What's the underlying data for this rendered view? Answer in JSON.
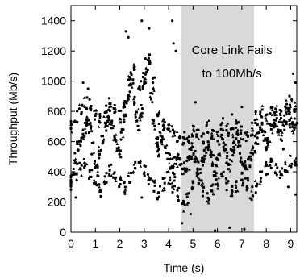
{
  "chart_data": {
    "type": "scatter",
    "xlabel": "Time (s)",
    "ylabel": "Throughput (Mb/s)",
    "xlim": [
      0,
      9.25
    ],
    "ylim": [
      0,
      1500
    ],
    "xticks": [
      "0",
      "1",
      "2",
      "3",
      "4",
      "5",
      "6",
      "7",
      "8",
      "9"
    ],
    "yticks": [
      "0",
      "200",
      "400",
      "600",
      "800",
      "1000",
      "1200",
      "1400"
    ],
    "legend": "none",
    "grid": false,
    "shaded_region": {
      "x_start": 4.5,
      "x_end": 7.5,
      "color": "#d9d9d9"
    },
    "annotation": {
      "line1": "Core Link Fails",
      "line2": "to 100Mb/s"
    },
    "series": [
      {
        "marker": "dense-points",
        "points": [
          [
            0.0,
            340
          ],
          [
            0.1,
            420
          ],
          [
            0.2,
            480
          ],
          [
            0.3,
            560
          ],
          [
            0.4,
            610
          ],
          [
            0.5,
            650
          ],
          [
            0.6,
            700
          ],
          [
            0.7,
            720
          ],
          [
            0.8,
            690
          ],
          [
            0.9,
            560
          ],
          [
            1.0,
            470
          ],
          [
            1.1,
            410
          ],
          [
            1.2,
            530
          ],
          [
            1.3,
            600
          ],
          [
            1.4,
            680
          ],
          [
            1.5,
            740
          ],
          [
            1.6,
            760
          ],
          [
            1.7,
            700
          ],
          [
            1.8,
            640
          ],
          [
            1.9,
            580
          ],
          [
            2.0,
            540
          ],
          [
            2.1,
            640
          ],
          [
            2.2,
            760
          ],
          [
            2.3,
            870
          ],
          [
            2.4,
            940
          ],
          [
            2.5,
            1000
          ],
          [
            2.6,
            880
          ],
          [
            2.7,
            780
          ],
          [
            2.8,
            720
          ],
          [
            2.9,
            800
          ],
          [
            3.0,
            980
          ],
          [
            3.1,
            1060
          ],
          [
            3.2,
            1140
          ],
          [
            3.3,
            900
          ],
          [
            3.4,
            720
          ],
          [
            3.5,
            600
          ],
          [
            3.6,
            540
          ],
          [
            3.7,
            620
          ],
          [
            3.8,
            660
          ],
          [
            3.9,
            560
          ],
          [
            4.0,
            500
          ],
          [
            4.1,
            450
          ],
          [
            4.2,
            410
          ],
          [
            4.3,
            470
          ],
          [
            4.4,
            520
          ],
          [
            4.5,
            480
          ],
          [
            4.6,
            420
          ],
          [
            4.7,
            390
          ],
          [
            4.8,
            460
          ],
          [
            4.9,
            520
          ],
          [
            5.0,
            560
          ],
          [
            5.1,
            500
          ],
          [
            5.2,
            430
          ],
          [
            5.3,
            380
          ],
          [
            5.4,
            450
          ],
          [
            5.5,
            520
          ],
          [
            5.6,
            580
          ],
          [
            5.7,
            540
          ],
          [
            5.8,
            470
          ],
          [
            5.9,
            420
          ],
          [
            6.0,
            480
          ],
          [
            6.1,
            540
          ],
          [
            6.2,
            600
          ],
          [
            6.3,
            560
          ],
          [
            6.4,
            490
          ],
          [
            6.5,
            440
          ],
          [
            6.6,
            510
          ],
          [
            6.7,
            570
          ],
          [
            6.8,
            620
          ],
          [
            6.9,
            560
          ],
          [
            7.0,
            490
          ],
          [
            7.1,
            430
          ],
          [
            7.2,
            400
          ],
          [
            7.3,
            460
          ],
          [
            7.4,
            520
          ],
          [
            7.5,
            560
          ],
          [
            7.6,
            620
          ],
          [
            7.7,
            680
          ],
          [
            7.8,
            700
          ],
          [
            7.9,
            640
          ],
          [
            8.0,
            590
          ],
          [
            8.1,
            620
          ],
          [
            8.2,
            680
          ],
          [
            8.3,
            720
          ],
          [
            8.4,
            740
          ],
          [
            8.5,
            690
          ],
          [
            8.6,
            650
          ],
          [
            8.7,
            700
          ],
          [
            8.8,
            760
          ],
          [
            8.9,
            780
          ],
          [
            9.0,
            730
          ],
          [
            9.1,
            690
          ],
          [
            9.2,
            720
          ]
        ]
      },
      {
        "marker": "upper-band",
        "points": [
          [
            0.0,
            700
          ],
          [
            0.2,
            760
          ],
          [
            0.4,
            820
          ],
          [
            0.6,
            860
          ],
          [
            0.8,
            840
          ],
          [
            1.0,
            790
          ],
          [
            1.2,
            740
          ],
          [
            1.4,
            810
          ],
          [
            1.6,
            850
          ],
          [
            1.8,
            820
          ],
          [
            2.0,
            760
          ],
          [
            2.2,
            840
          ],
          [
            2.4,
            1040
          ],
          [
            2.6,
            1110
          ],
          [
            2.8,
            960
          ],
          [
            3.0,
            1020
          ],
          [
            3.2,
            1150
          ],
          [
            3.4,
            980
          ],
          [
            3.6,
            760
          ],
          [
            3.8,
            720
          ],
          [
            4.0,
            710
          ],
          [
            4.2,
            680
          ],
          [
            4.4,
            640
          ],
          [
            4.6,
            620
          ],
          [
            4.8,
            600
          ],
          [
            5.0,
            680
          ],
          [
            5.2,
            650
          ],
          [
            5.4,
            610
          ],
          [
            5.6,
            700
          ],
          [
            5.8,
            660
          ],
          [
            6.0,
            640
          ],
          [
            6.2,
            720
          ],
          [
            6.4,
            680
          ],
          [
            6.6,
            650
          ],
          [
            6.8,
            700
          ],
          [
            7.0,
            660
          ],
          [
            7.2,
            620
          ],
          [
            7.4,
            680
          ],
          [
            7.6,
            760
          ],
          [
            7.8,
            800
          ],
          [
            8.0,
            760
          ],
          [
            8.2,
            790
          ],
          [
            8.4,
            820
          ],
          [
            8.6,
            790
          ],
          [
            8.8,
            830
          ],
          [
            9.0,
            860
          ],
          [
            9.2,
            840
          ]
        ]
      },
      {
        "marker": "lower-band",
        "points": [
          [
            0.0,
            300
          ],
          [
            0.2,
            360
          ],
          [
            0.4,
            420
          ],
          [
            0.6,
            460
          ],
          [
            0.8,
            400
          ],
          [
            1.0,
            330
          ],
          [
            1.2,
            280
          ],
          [
            1.4,
            360
          ],
          [
            1.6,
            420
          ],
          [
            1.8,
            380
          ],
          [
            2.0,
            330
          ],
          [
            2.2,
            300
          ],
          [
            2.4,
            360
          ],
          [
            2.6,
            420
          ],
          [
            2.8,
            460
          ],
          [
            3.0,
            410
          ],
          [
            3.2,
            360
          ],
          [
            3.4,
            300
          ],
          [
            3.6,
            260
          ],
          [
            3.8,
            320
          ],
          [
            4.0,
            360
          ],
          [
            4.2,
            300
          ],
          [
            4.4,
            250
          ],
          [
            4.6,
            180
          ],
          [
            4.8,
            230
          ],
          [
            5.0,
            300
          ],
          [
            5.2,
            350
          ],
          [
            5.4,
            280
          ],
          [
            5.6,
            220
          ],
          [
            5.8,
            270
          ],
          [
            6.0,
            330
          ],
          [
            6.2,
            380
          ],
          [
            6.4,
            320
          ],
          [
            6.6,
            260
          ],
          [
            6.8,
            300
          ],
          [
            7.0,
            350
          ],
          [
            7.2,
            300
          ],
          [
            7.4,
            260
          ],
          [
            7.6,
            300
          ],
          [
            7.8,
            360
          ],
          [
            8.0,
            420
          ],
          [
            8.2,
            460
          ],
          [
            8.4,
            420
          ],
          [
            8.6,
            380
          ],
          [
            8.8,
            430
          ],
          [
            9.0,
            470
          ],
          [
            9.2,
            450
          ]
        ]
      },
      {
        "marker": "outliers",
        "points": [
          [
            2.25,
            1330
          ],
          [
            2.35,
            1290
          ],
          [
            2.9,
            1400
          ],
          [
            3.2,
            1350
          ],
          [
            4.15,
            1400
          ],
          [
            4.2,
            1250
          ],
          [
            3.05,
            1150
          ],
          [
            4.3,
            1200
          ],
          [
            1.2,
            280
          ],
          [
            2.9,
            230
          ],
          [
            4.55,
            60
          ],
          [
            4.9,
            120
          ],
          [
            5.9,
            10
          ],
          [
            6.5,
            30
          ],
          [
            7.1,
            20
          ],
          [
            0.2,
            230
          ],
          [
            0.5,
            990
          ],
          [
            0.7,
            950
          ],
          [
            6.6,
            780
          ],
          [
            7.0,
            830
          ],
          [
            5.1,
            860
          ],
          [
            8.9,
            300
          ],
          [
            9.2,
            250
          ],
          [
            8.7,
            550
          ],
          [
            9.1,
            1050
          ],
          [
            9.2,
            990
          ]
        ]
      }
    ]
  }
}
